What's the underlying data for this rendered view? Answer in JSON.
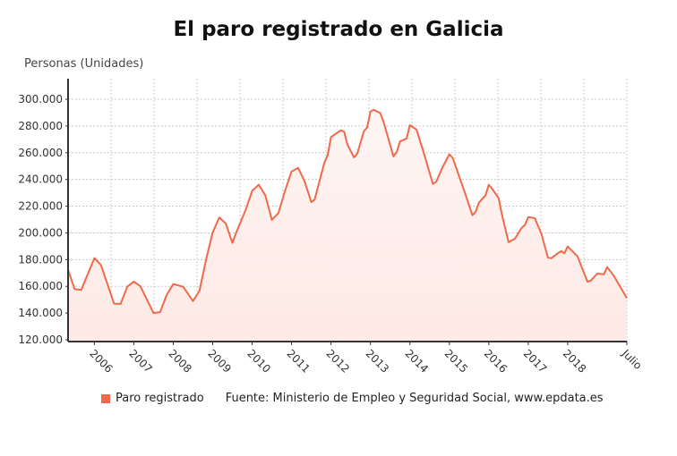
{
  "chart_data": {
    "type": "area",
    "title": "El paro registrado en Galicia",
    "ylabel": "Personas (Unidades)",
    "xlabel": "",
    "ylim": [
      120000,
      300000
    ],
    "xlim": [
      "2005-05",
      "2019-07"
    ],
    "grid": true,
    "legend_position": "bottom",
    "y_ticks": [
      "120.000",
      "140.000",
      "160.000",
      "180.000",
      "200.000",
      "220.000",
      "240.000",
      "260.000",
      "280.000",
      "300.000"
    ],
    "y_tick_values": [
      120000,
      140000,
      160000,
      180000,
      200000,
      220000,
      240000,
      260000,
      280000,
      300000
    ],
    "x_ticks": [
      {
        "label": "2006",
        "date": "2006-01"
      },
      {
        "label": "2007",
        "date": "2007-01"
      },
      {
        "label": "2008",
        "date": "2008-01"
      },
      {
        "label": "2009",
        "date": "2009-01"
      },
      {
        "label": "2010",
        "date": "2010-01"
      },
      {
        "label": "2011",
        "date": "2011-01"
      },
      {
        "label": "2012",
        "date": "2012-01"
      },
      {
        "label": "2013",
        "date": "2013-01"
      },
      {
        "label": "2014",
        "date": "2014-01"
      },
      {
        "label": "2015",
        "date": "2015-01"
      },
      {
        "label": "2016",
        "date": "2016-01"
      },
      {
        "label": "2017",
        "date": "2017-01"
      },
      {
        "label": "2018",
        "date": "2018-01"
      },
      {
        "label": "Julio",
        "date": "2019-07"
      }
    ],
    "series": [
      {
        "name": "Paro registrado",
        "color": "#f0694a",
        "fill": "#fdeeea",
        "x": [
          "2005-05",
          "2005-07",
          "2005-09",
          "2006-01",
          "2006-03",
          "2006-07",
          "2006-09",
          "2006-11",
          "2007-01",
          "2007-03",
          "2007-07",
          "2007-09",
          "2007-11",
          "2008-01",
          "2008-04",
          "2008-07",
          "2008-09",
          "2008-11",
          "2009-01",
          "2009-03",
          "2009-05",
          "2009-07",
          "2009-08",
          "2009-11",
          "2010-01",
          "2010-03",
          "2010-05",
          "2010-07",
          "2010-09",
          "2010-11",
          "2011-01",
          "2011-03",
          "2011-05",
          "2011-07",
          "2011-08",
          "2011-11",
          "2011-12",
          "2012-01",
          "2012-04",
          "2012-05",
          "2012-06",
          "2012-08",
          "2012-09",
          "2012-11",
          "2012-12",
          "2013-01",
          "2013-02",
          "2013-04",
          "2013-05",
          "2013-08",
          "2013-09",
          "2013-10",
          "2013-12",
          "2014-01",
          "2014-03",
          "2014-05",
          "2014-08",
          "2014-09",
          "2014-11",
          "2015-01",
          "2015-02",
          "2015-06",
          "2015-08",
          "2015-09",
          "2015-10",
          "2015-12",
          "2016-01",
          "2016-02",
          "2016-04",
          "2016-05",
          "2016-07",
          "2016-09",
          "2016-11",
          "2016-12",
          "2017-01",
          "2017-03",
          "2017-05",
          "2017-07",
          "2017-08",
          "2017-10",
          "2017-11",
          "2017-12",
          "2018-01",
          "2018-04",
          "2018-07",
          "2018-08",
          "2018-10",
          "2018-12",
          "2019-01",
          "2019-03",
          "2019-07"
        ],
        "values": [
          172400,
          158000,
          157300,
          181100,
          176000,
          147000,
          146800,
          159700,
          163500,
          160000,
          140000,
          140700,
          153500,
          161700,
          159700,
          149000,
          156800,
          180200,
          200300,
          211500,
          207000,
          192500,
          199200,
          217000,
          231500,
          236000,
          228200,
          209700,
          214800,
          231500,
          246000,
          248700,
          238300,
          223000,
          224900,
          252700,
          258300,
          271700,
          276800,
          275700,
          266100,
          256500,
          259400,
          276200,
          278900,
          290700,
          292200,
          289600,
          282900,
          257200,
          260600,
          268400,
          270600,
          280600,
          277300,
          261700,
          236600,
          238300,
          249400,
          258800,
          256100,
          228200,
          213200,
          215900,
          222600,
          228200,
          236000,
          233100,
          226000,
          213700,
          193000,
          195800,
          203700,
          205900,
          211900,
          211000,
          199200,
          181400,
          181000,
          184700,
          186400,
          184700,
          189800,
          182400,
          163500,
          164200,
          169500,
          169000,
          174400,
          168000,
          151200
        ]
      }
    ]
  },
  "legend": {
    "series_label": "Paro registrado"
  },
  "source": "Fuente: Ministerio de Empleo y Seguridad Social, www.epdata.es"
}
